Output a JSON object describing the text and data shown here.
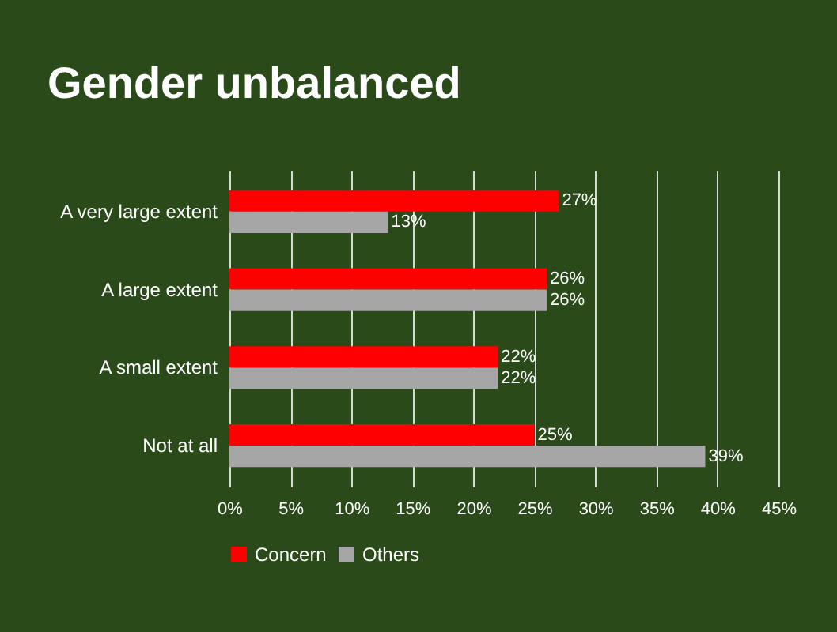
{
  "chart_data": {
    "type": "bar",
    "orientation": "horizontal",
    "title": "Gender unbalanced",
    "categories": [
      "A very large extent",
      "A large extent",
      "A small extent",
      "Not at all"
    ],
    "series": [
      {
        "name": "Concern",
        "color": "#ff0000",
        "values": [
          27,
          26,
          22,
          25
        ],
        "value_labels": [
          "27%",
          "26%",
          "22%",
          "25%"
        ]
      },
      {
        "name": "Others",
        "color": "#a6a6a6",
        "values": [
          13,
          26,
          22,
          39
        ],
        "value_labels": [
          "13%",
          "26%",
          "22%",
          "39%"
        ]
      }
    ],
    "xlim": [
      0,
      45
    ],
    "xticks": [
      {
        "value": 0,
        "label": "0%"
      },
      {
        "value": 5,
        "label": "5%"
      },
      {
        "value": 10,
        "label": "10%"
      },
      {
        "value": 15,
        "label": "15%"
      },
      {
        "value": 20,
        "label": "20%"
      },
      {
        "value": 25,
        "label": "25%"
      },
      {
        "value": 30,
        "label": "30%"
      },
      {
        "value": 35,
        "label": "35%"
      },
      {
        "value": 40,
        "label": "40%"
      },
      {
        "value": 45,
        "label": "45%"
      }
    ],
    "grid": "x",
    "legend": "bottom"
  }
}
